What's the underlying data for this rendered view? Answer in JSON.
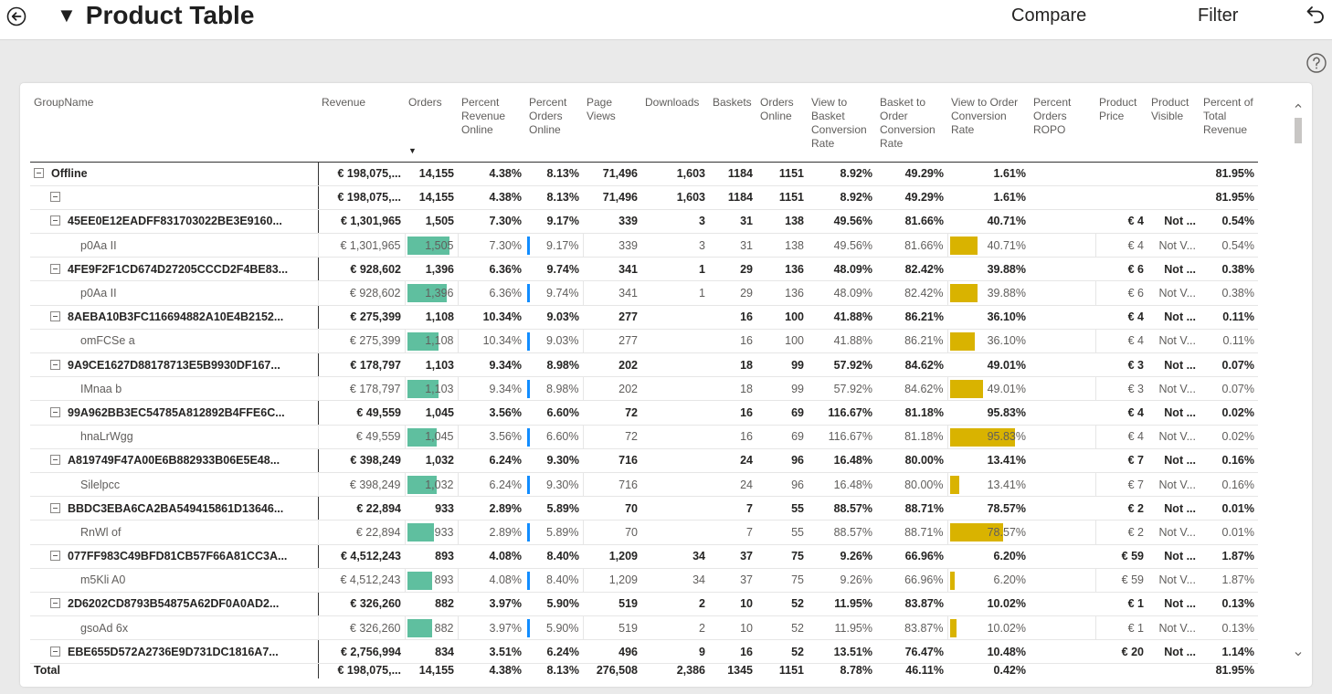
{
  "header": {
    "title": "Product Table",
    "compare_label": "Compare",
    "filter_label": "Filter"
  },
  "colors": {
    "orders_bar": "#5fbf9f",
    "percent_orders_online_bar": "#118dff",
    "view_to_order_bar": "#d9b300"
  },
  "columns": [
    "GroupName",
    "Revenue",
    "Orders",
    "Percent Revenue Online",
    "Percent Orders Online",
    "Page Views",
    "Downloads",
    "Baskets",
    "Orders Online",
    "View to Basket Conversion Rate",
    "Basket to Order Conversion Rate",
    "View to Order Conversion Rate",
    "Percent Orders ROPO",
    "Product Price",
    "Product Visible",
    "Percent of Total Revenue"
  ],
  "rows": [
    {
      "level": 0,
      "bold": true,
      "expand": true,
      "cells": [
        "Offline",
        "€ 198,075,...",
        "14,155",
        "4.38%",
        "8.13%",
        "71,496",
        "1,603",
        "1184",
        "1151",
        "8.92%",
        "49.29%",
        "1.61%",
        "",
        "",
        "",
        "81.95%"
      ]
    },
    {
      "level": 1,
      "bold": true,
      "expand": true,
      "cells": [
        "",
        "€ 198,075,...",
        "14,155",
        "4.38%",
        "8.13%",
        "71,496",
        "1,603",
        "1184",
        "1151",
        "8.92%",
        "49.29%",
        "1.61%",
        "",
        "",
        "",
        "81.95%"
      ]
    },
    {
      "level": 1,
      "bold": true,
      "expand": true,
      "cells": [
        "45EE0E12EADFF831703022BE3E9160...",
        "€ 1,301,965",
        "1,505",
        "7.30%",
        "9.17%",
        "339",
        "3",
        "31",
        "138",
        "49.56%",
        "81.66%",
        "40.71%",
        "",
        "€ 4",
        "Not ...",
        "0.54%"
      ]
    },
    {
      "level": 2,
      "bold": false,
      "cells": [
        "p0Aa II",
        "€ 1,301,965",
        "1,505",
        "7.30%",
        "9.17%",
        "339",
        "3",
        "31",
        "138",
        "49.56%",
        "81.66%",
        "40.71%",
        "",
        "€ 4",
        "Not V...",
        "0.54%"
      ],
      "bars": {
        "orders": 1505,
        "pct_orders_online": 9.17,
        "view_to_order": 40.71
      }
    },
    {
      "level": 1,
      "bold": true,
      "expand": true,
      "cells": [
        "4FE9F2F1CD674D27205CCCD2F4BE83...",
        "€ 928,602",
        "1,396",
        "6.36%",
        "9.74%",
        "341",
        "1",
        "29",
        "136",
        "48.09%",
        "82.42%",
        "39.88%",
        "",
        "€ 6",
        "Not ...",
        "0.38%"
      ]
    },
    {
      "level": 2,
      "bold": false,
      "cells": [
        "p0Aa II",
        "€ 928,602",
        "1,396",
        "6.36%",
        "9.74%",
        "341",
        "1",
        "29",
        "136",
        "48.09%",
        "82.42%",
        "39.88%",
        "",
        "€ 6",
        "Not V...",
        "0.38%"
      ],
      "bars": {
        "orders": 1396,
        "pct_orders_online": 9.74,
        "view_to_order": 39.88
      }
    },
    {
      "level": 1,
      "bold": true,
      "expand": true,
      "cells": [
        "8AEBA10B3FC116694882A10E4B2152...",
        "€ 275,399",
        "1,108",
        "10.34%",
        "9.03%",
        "277",
        "",
        "16",
        "100",
        "41.88%",
        "86.21%",
        "36.10%",
        "",
        "€ 4",
        "Not ...",
        "0.11%"
      ]
    },
    {
      "level": 2,
      "bold": false,
      "cells": [
        "omFCSe a",
        "€ 275,399",
        "1,108",
        "10.34%",
        "9.03%",
        "277",
        "",
        "16",
        "100",
        "41.88%",
        "86.21%",
        "36.10%",
        "",
        "€ 4",
        "Not V...",
        "0.11%"
      ],
      "bars": {
        "orders": 1108,
        "pct_orders_online": 9.03,
        "view_to_order": 36.1
      }
    },
    {
      "level": 1,
      "bold": true,
      "expand": true,
      "cells": [
        "9A9CE1627D88178713E5B9930DF167...",
        "€ 178,797",
        "1,103",
        "9.34%",
        "8.98%",
        "202",
        "",
        "18",
        "99",
        "57.92%",
        "84.62%",
        "49.01%",
        "",
        "€ 3",
        "Not ...",
        "0.07%"
      ]
    },
    {
      "level": 2,
      "bold": false,
      "cells": [
        "IMnaa b",
        "€ 178,797",
        "1,103",
        "9.34%",
        "8.98%",
        "202",
        "",
        "18",
        "99",
        "57.92%",
        "84.62%",
        "49.01%",
        "",
        "€ 3",
        "Not V...",
        "0.07%"
      ],
      "bars": {
        "orders": 1103,
        "pct_orders_online": 8.98,
        "view_to_order": 49.01
      }
    },
    {
      "level": 1,
      "bold": true,
      "expand": true,
      "cells": [
        "99A962BB3EC54785A812892B4FFE6C...",
        "€ 49,559",
        "1,045",
        "3.56%",
        "6.60%",
        "72",
        "",
        "16",
        "69",
        "116.67%",
        "81.18%",
        "95.83%",
        "",
        "€ 4",
        "Not ...",
        "0.02%"
      ]
    },
    {
      "level": 2,
      "bold": false,
      "cells": [
        "hnaLrWgg",
        "€ 49,559",
        "1,045",
        "3.56%",
        "6.60%",
        "72",
        "",
        "16",
        "69",
        "116.67%",
        "81.18%",
        "95.83%",
        "",
        "€ 4",
        "Not V...",
        "0.02%"
      ],
      "bars": {
        "orders": 1045,
        "pct_orders_online": 6.6,
        "view_to_order": 95.83
      }
    },
    {
      "level": 1,
      "bold": true,
      "expand": true,
      "cells": [
        "A819749F47A00E6B882933B06E5E48...",
        "€ 398,249",
        "1,032",
        "6.24%",
        "9.30%",
        "716",
        "",
        "24",
        "96",
        "16.48%",
        "80.00%",
        "13.41%",
        "",
        "€ 7",
        "Not ...",
        "0.16%"
      ]
    },
    {
      "level": 2,
      "bold": false,
      "cells": [
        "Silelpcc",
        "€ 398,249",
        "1,032",
        "6.24%",
        "9.30%",
        "716",
        "",
        "24",
        "96",
        "16.48%",
        "80.00%",
        "13.41%",
        "",
        "€ 7",
        "Not V...",
        "0.16%"
      ],
      "bars": {
        "orders": 1032,
        "pct_orders_online": 9.3,
        "view_to_order": 13.41
      }
    },
    {
      "level": 1,
      "bold": true,
      "expand": true,
      "cells": [
        "BBDC3EBA6CA2BA549415861D13646...",
        "€ 22,894",
        "933",
        "2.89%",
        "5.89%",
        "70",
        "",
        "7",
        "55",
        "88.57%",
        "88.71%",
        "78.57%",
        "",
        "€ 2",
        "Not ...",
        "0.01%"
      ]
    },
    {
      "level": 2,
      "bold": false,
      "cells": [
        "RnWl of",
        "€ 22,894",
        "933",
        "2.89%",
        "5.89%",
        "70",
        "",
        "7",
        "55",
        "88.57%",
        "88.71%",
        "78.57%",
        "",
        "€ 2",
        "Not V...",
        "0.01%"
      ],
      "bars": {
        "orders": 933,
        "pct_orders_online": 5.89,
        "view_to_order": 78.57
      }
    },
    {
      "level": 1,
      "bold": true,
      "expand": true,
      "cells": [
        "077FF983C49BFD81CB57F66A81CC3A...",
        "€ 4,512,243",
        "893",
        "4.08%",
        "8.40%",
        "1,209",
        "34",
        "37",
        "75",
        "9.26%",
        "66.96%",
        "6.20%",
        "",
        "€ 59",
        "Not ...",
        "1.87%"
      ]
    },
    {
      "level": 2,
      "bold": false,
      "cells": [
        "m5Kli A0",
        "€ 4,512,243",
        "893",
        "4.08%",
        "8.40%",
        "1,209",
        "34",
        "37",
        "75",
        "9.26%",
        "66.96%",
        "6.20%",
        "",
        "€ 59",
        "Not V...",
        "1.87%"
      ],
      "bars": {
        "orders": 893,
        "pct_orders_online": 8.4,
        "view_to_order": 6.2
      }
    },
    {
      "level": 1,
      "bold": true,
      "expand": true,
      "cells": [
        "2D6202CD8793B54875A62DF0A0AD2...",
        "€ 326,260",
        "882",
        "3.97%",
        "5.90%",
        "519",
        "2",
        "10",
        "52",
        "11.95%",
        "83.87%",
        "10.02%",
        "",
        "€ 1",
        "Not ...",
        "0.13%"
      ]
    },
    {
      "level": 2,
      "bold": false,
      "cells": [
        "gsoAd 6x",
        "€ 326,260",
        "882",
        "3.97%",
        "5.90%",
        "519",
        "2",
        "10",
        "52",
        "11.95%",
        "83.87%",
        "10.02%",
        "",
        "€ 1",
        "Not V...",
        "0.13%"
      ],
      "bars": {
        "orders": 882,
        "pct_orders_online": 5.9,
        "view_to_order": 10.02
      }
    },
    {
      "level": 1,
      "bold": true,
      "expand": true,
      "cells": [
        "EBE655D572A2736E9D731DC1816A7...",
        "€ 2,756,994",
        "834",
        "3.51%",
        "6.24%",
        "496",
        "9",
        "16",
        "52",
        "13.51%",
        "76.47%",
        "10.48%",
        "",
        "€ 20",
        "Not ...",
        "1.14%"
      ]
    }
  ],
  "total": {
    "label": "Total",
    "cells": [
      "€ 198,075,...",
      "14,155",
      "4.38%",
      "8.13%",
      "276,508",
      "2,386",
      "1345",
      "1151",
      "8.78%",
      "46.11%",
      "0.42%",
      "",
      "",
      "",
      "81.95%"
    ]
  }
}
